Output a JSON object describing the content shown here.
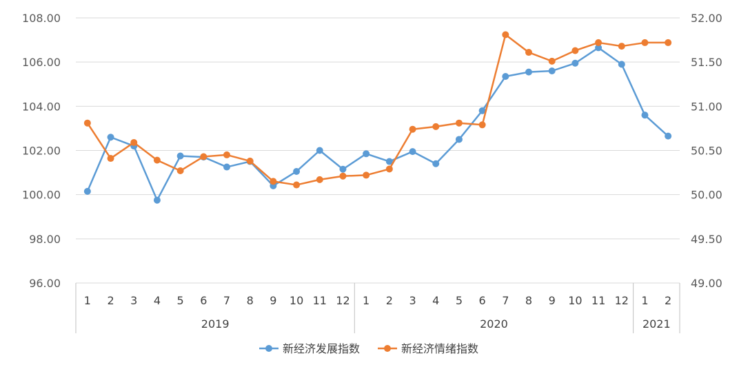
{
  "chart_data": {
    "type": "line",
    "title": "",
    "xlabel": "",
    "ylabel": "",
    "years": [
      {
        "label": "2019",
        "months": [
          "1",
          "2",
          "3",
          "4",
          "5",
          "6",
          "7",
          "8",
          "9",
          "10",
          "11",
          "12"
        ]
      },
      {
        "label": "2020",
        "months": [
          "1",
          "2",
          "3",
          "4",
          "5",
          "6",
          "7",
          "8",
          "9",
          "10",
          "11",
          "12"
        ]
      },
      {
        "label": "2021",
        "months": [
          "1",
          "2"
        ]
      }
    ],
    "y_left": {
      "ticks": [
        "108.00",
        "106.00",
        "104.00",
        "102.00",
        "100.00",
        "98.00",
        "96.00"
      ],
      "ylim": [
        96,
        108
      ]
    },
    "y_right": {
      "ticks": [
        "52.00",
        "51.50",
        "51.00",
        "50.50",
        "50.00",
        "49.50",
        "49.00"
      ],
      "ylim": [
        49,
        52
      ]
    },
    "grid": true,
    "legend_position": "bottom",
    "series": [
      {
        "name": "新经济发展指数",
        "axis": "left",
        "color": "#5B9BD5",
        "values": [
          100.15,
          102.6,
          102.2,
          99.75,
          101.75,
          101.7,
          101.25,
          101.5,
          100.4,
          101.05,
          102.0,
          101.15,
          101.85,
          101.5,
          101.95,
          101.4,
          102.5,
          103.8,
          105.35,
          105.55,
          105.6,
          105.95,
          106.65,
          105.9,
          103.6,
          102.65
        ]
      },
      {
        "name": "新经济情绪指数",
        "axis": "right",
        "color": "#ED7D31",
        "values": [
          50.81,
          50.41,
          50.59,
          50.39,
          50.27,
          50.43,
          50.45,
          50.38,
          50.15,
          50.11,
          50.17,
          50.21,
          50.22,
          50.29,
          50.74,
          50.77,
          50.81,
          50.79,
          51.81,
          51.61,
          51.51,
          51.63,
          51.72,
          51.68,
          51.72,
          51.72
        ]
      }
    ]
  }
}
